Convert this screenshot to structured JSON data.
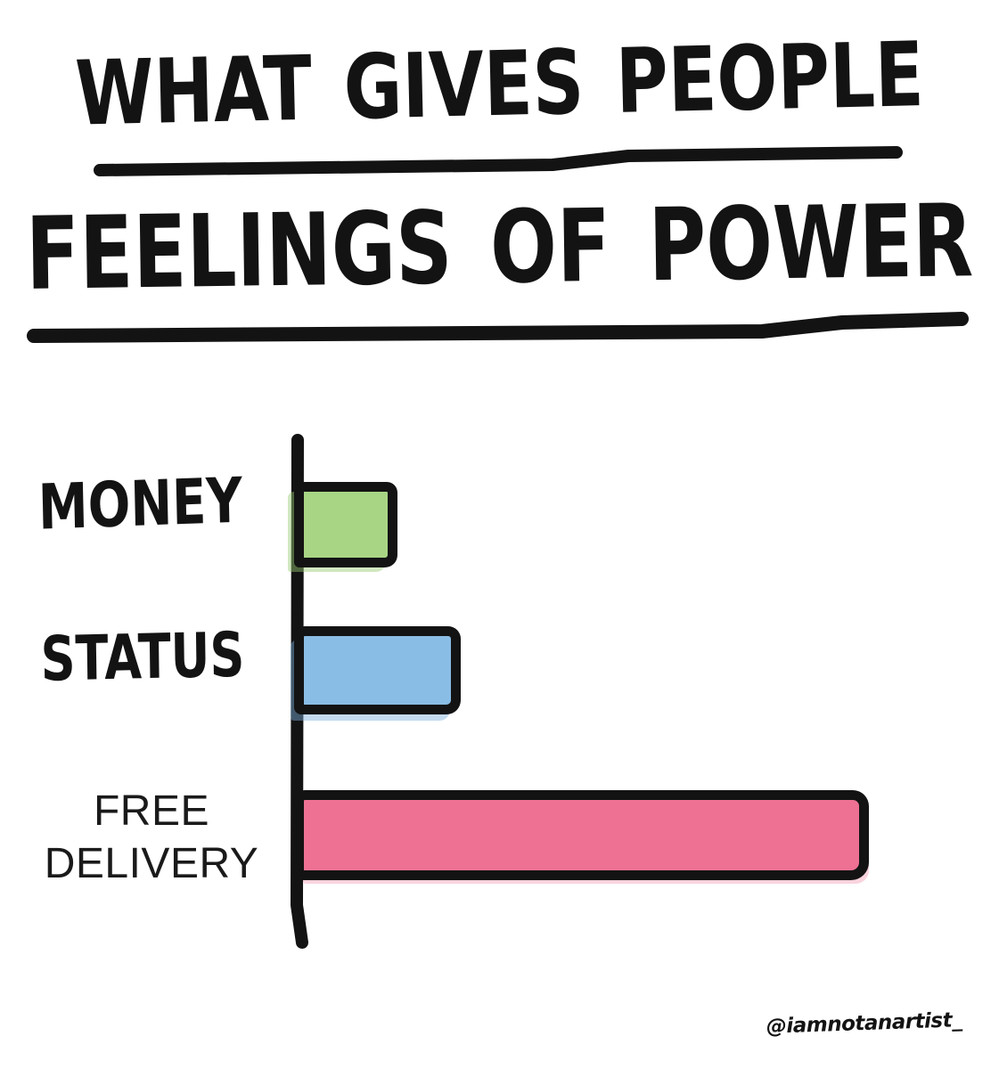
{
  "title": {
    "line1": "WHAT GIVES PEOPLE",
    "line2": "FEELINGS OF POWER"
  },
  "chart_data": {
    "type": "bar",
    "orientation": "horizontal",
    "title": "WHAT GIVES PEOPLE FEELINGS OF POWER",
    "categories": [
      "MONEY",
      "STATUS",
      "FREE DELIVERY"
    ],
    "values": [
      18,
      29,
      100
    ],
    "value_range": [
      0,
      100
    ],
    "value_axis": "none (no numeric scale or tick labels shown)",
    "bar_colors": [
      "#a8d584",
      "#8abde5",
      "#ee7194"
    ],
    "outline_color": "#131313",
    "grid": false,
    "legend": "none",
    "style": "hand-drawn marker sketch"
  },
  "colors": {
    "ink": "#131313",
    "background": "#ffffff",
    "money_green": "#a8d584",
    "status_blue": "#8abde5",
    "delivery_pink": "#ee7194"
  },
  "signature": "@iamnotanartist_"
}
